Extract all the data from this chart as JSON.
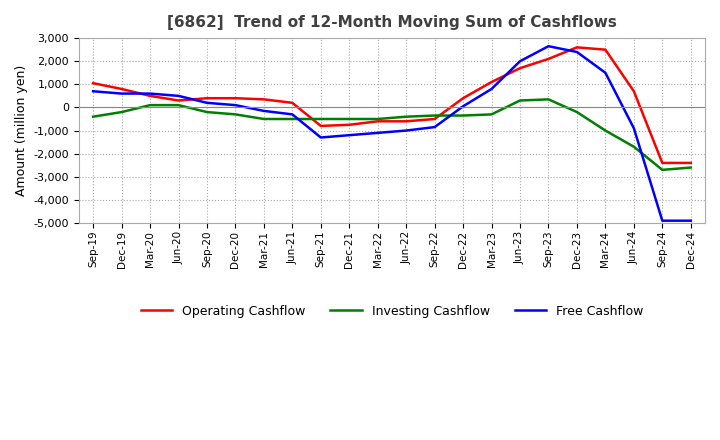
{
  "title": "[6862]  Trend of 12-Month Moving Sum of Cashflows",
  "ylabel": "Amount (million yen)",
  "ylim": [
    -5000,
    3000
  ],
  "yticks": [
    -5000,
    -4000,
    -3000,
    -2000,
    -1000,
    0,
    1000,
    2000,
    3000
  ],
  "x_labels": [
    "Sep-19",
    "Dec-19",
    "Mar-20",
    "Jun-20",
    "Sep-20",
    "Dec-20",
    "Mar-21",
    "Jun-21",
    "Sep-21",
    "Dec-21",
    "Mar-22",
    "Jun-22",
    "Sep-22",
    "Dec-22",
    "Mar-23",
    "Jun-23",
    "Sep-23",
    "Dec-23",
    "Mar-24",
    "Jun-24",
    "Sep-24",
    "Dec-24"
  ],
  "operating_cashflow": [
    1050,
    800,
    500,
    300,
    400,
    400,
    350,
    200,
    -800,
    -750,
    -600,
    -600,
    -500,
    400,
    1100,
    1700,
    2100,
    2600,
    2500,
    700,
    -2400,
    -2400
  ],
  "investing_cashflow": [
    -400,
    -200,
    100,
    100,
    -200,
    -300,
    -500,
    -500,
    -500,
    -500,
    -500,
    -400,
    -350,
    -350,
    -300,
    300,
    350,
    -200,
    -1000,
    -1700,
    -2700,
    -2600
  ],
  "free_cashflow": [
    700,
    600,
    600,
    500,
    200,
    100,
    -150,
    -300,
    -1300,
    -1200,
    -1100,
    -1000,
    -850,
    50,
    800,
    2000,
    2650,
    2400,
    1500,
    -900,
    -4900,
    -4900
  ],
  "operating_color": "#ff0000",
  "investing_color": "#008000",
  "free_color": "#0000ff",
  "bg_color": "#ffffff",
  "grid_color": "#aaaaaa",
  "title_color": "#404040",
  "legend_labels": [
    "Operating Cashflow",
    "Investing Cashflow",
    "Free Cashflow"
  ]
}
